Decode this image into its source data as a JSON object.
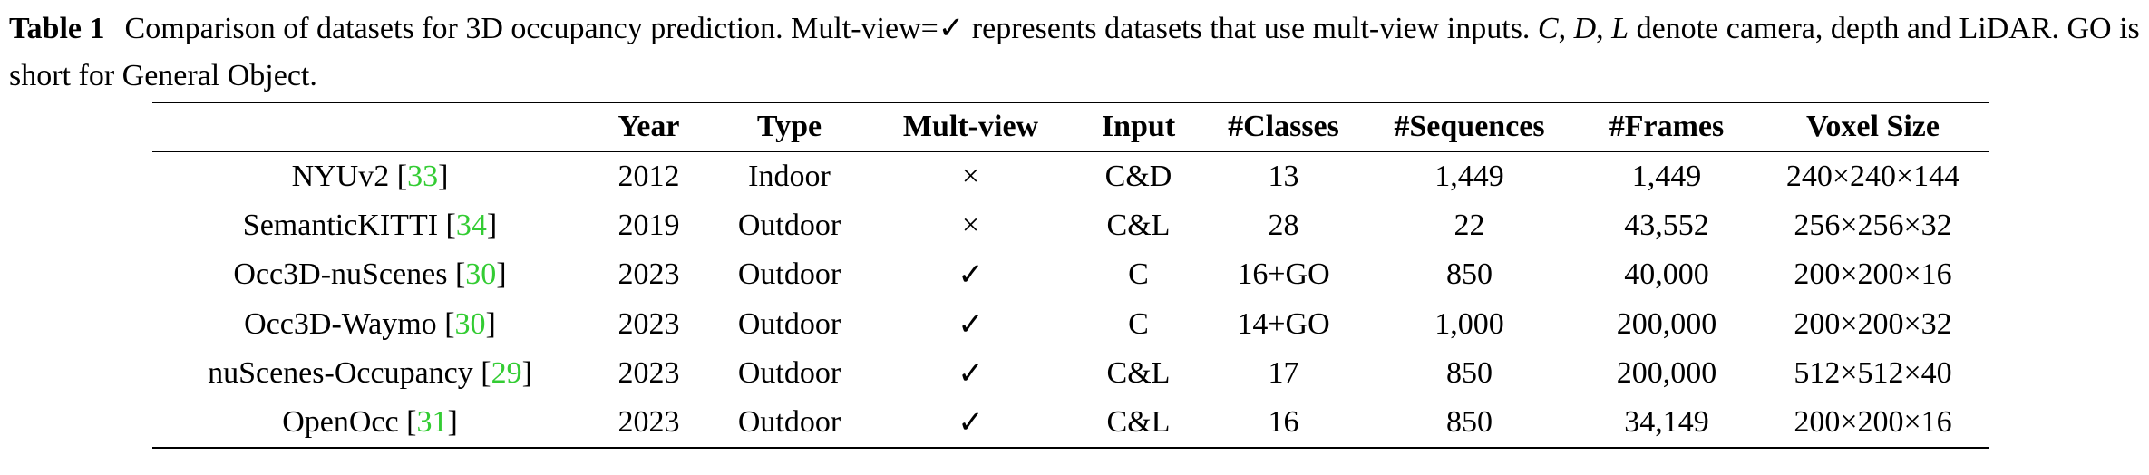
{
  "caption": {
    "label": "Table 1",
    "text_before": "Comparison of datasets for 3D occupancy prediction. Mult-view=✓ represents datasets that use mult-view inputs.",
    "var_c": "C",
    "sep1": ", ",
    "var_d": "D",
    "sep2": ", ",
    "var_l": "L",
    "text_after": "denote camera, depth and LiDAR. GO is short for General Object."
  },
  "table": {
    "headers": [
      "",
      "Year",
      "Type",
      "Mult-view",
      "Input",
      "#Classes",
      "#Sequences",
      "#Frames",
      "Voxel Size"
    ],
    "rows": [
      {
        "name": "NYUv2",
        "ref": "33",
        "year": "2012",
        "type": "Indoor",
        "multiview": "×",
        "input": "C&D",
        "classes": "13",
        "sequences": "1,449",
        "frames": "1,449",
        "voxel": "240×240×144"
      },
      {
        "name": "SemanticKITTI",
        "ref": "34",
        "year": "2019",
        "type": "Outdoor",
        "multiview": "×",
        "input": "C&L",
        "classes": "28",
        "sequences": "22",
        "frames": "43,552",
        "voxel": "256×256×32"
      },
      {
        "name": "Occ3D-nuScenes",
        "ref": "30",
        "year": "2023",
        "type": "Outdoor",
        "multiview": "✓",
        "input": "C",
        "classes": "16+GO",
        "sequences": "850",
        "frames": "40,000",
        "voxel": "200×200×16"
      },
      {
        "name": "Occ3D-Waymo",
        "ref": "30",
        "year": "2023",
        "type": "Outdoor",
        "multiview": "✓",
        "input": "C",
        "classes": "14+GO",
        "sequences": "1,000",
        "frames": "200,000",
        "voxel": "200×200×32"
      },
      {
        "name": "nuScenes-Occupancy",
        "ref": "29",
        "year": "2023",
        "type": "Outdoor",
        "multiview": "✓",
        "input": "C&L",
        "classes": "17",
        "sequences": "850",
        "frames": "200,000",
        "voxel": "512×512×40"
      },
      {
        "name": "OpenOcc",
        "ref": "31",
        "year": "2023",
        "type": "Outdoor",
        "multiview": "✓",
        "input": "C&L",
        "classes": "16",
        "sequences": "850",
        "frames": "34,149",
        "voxel": "200×200×16"
      }
    ]
  },
  "colors": {
    "citation": "#33cc33",
    "text": "#000000"
  }
}
